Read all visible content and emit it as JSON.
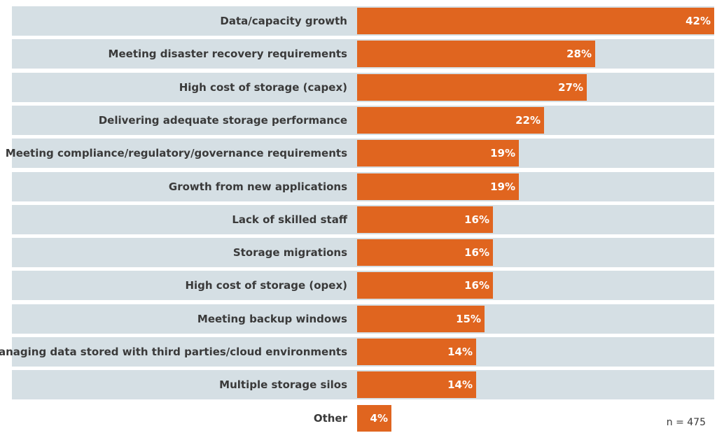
{
  "chart_data": {
    "type": "bar",
    "orientation": "horizontal",
    "categories": [
      "Data/capacity growth",
      "Meeting disaster recovery requirements",
      "High cost of storage (capex)",
      "Delivering adequate storage performance",
      "Meeting compliance/regulatory/governance requirements",
      "Growth from new applications",
      "Lack of skilled staff",
      "Storage migrations",
      "High cost of storage (opex)",
      "Meeting backup windows",
      "Managing data stored with third parties/cloud environments",
      "Multiple storage silos",
      "Other"
    ],
    "values": [
      42,
      28,
      27,
      22,
      19,
      19,
      16,
      16,
      16,
      15,
      14,
      14,
      4
    ],
    "value_labels": [
      "42%",
      "28%",
      "27%",
      "22%",
      "19%",
      "19%",
      "16%",
      "16%",
      "16%",
      "15%",
      "14%",
      "14%",
      "4%"
    ],
    "unit": "%",
    "xlim": [
      0,
      42
    ],
    "grid": false,
    "legend": "none"
  },
  "note": "n = 475",
  "colors": {
    "bar": "#e0651f",
    "band": "#d5dfe4",
    "label_text": "#3a3a3a",
    "value_text": "#ffffff"
  }
}
